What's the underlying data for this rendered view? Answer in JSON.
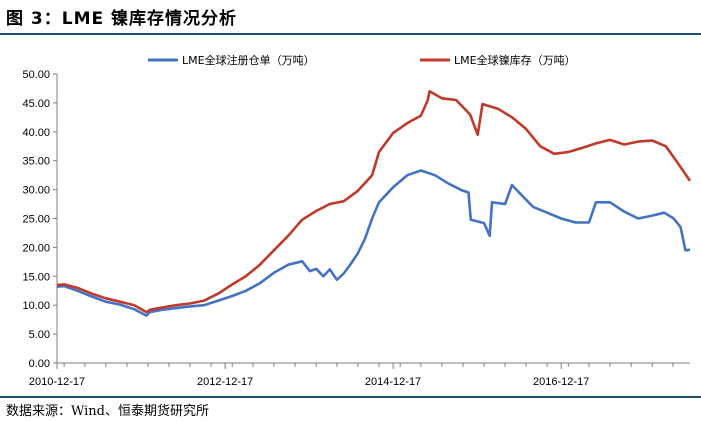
{
  "header": {
    "title": "图 3：LME 镍库存情况分析"
  },
  "footer": {
    "source": "数据来源：Wind、恒泰期货研究所"
  },
  "colors": {
    "series_blue": "#4472c4",
    "series_red": "#c0392b",
    "rule": "#1f4e79"
  },
  "chart_data": {
    "type": "line",
    "title": "",
    "xlabel": "",
    "ylabel": "",
    "ylim": [
      0,
      50
    ],
    "y_ticks": [
      "0.00",
      "5.00",
      "10.00",
      "15.00",
      "20.00",
      "25.00",
      "30.00",
      "35.00",
      "40.00",
      "45.00",
      "50.00"
    ],
    "x_range": [
      "2010-12-17",
      "2018-06-30"
    ],
    "x_ticks": [
      "2010-12-17",
      "2012-12-17",
      "2014-12-17",
      "2016-12-17"
    ],
    "grid": false,
    "legend_position": "top",
    "series": [
      {
        "name": "LME全球注册仓单（万吨）",
        "color": "#4472c4",
        "points": [
          [
            "2010-12-17",
            13.2
          ],
          [
            "2011-01-17",
            13.3
          ],
          [
            "2011-03-17",
            12.5
          ],
          [
            "2011-05-17",
            11.5
          ],
          [
            "2011-07-17",
            10.6
          ],
          [
            "2011-09-17",
            10.1
          ],
          [
            "2011-11-17",
            9.3
          ],
          [
            "2012-01-10",
            8.2
          ],
          [
            "2012-01-25",
            8.8
          ],
          [
            "2012-03-17",
            9.2
          ],
          [
            "2012-05-17",
            9.5
          ],
          [
            "2012-07-17",
            9.8
          ],
          [
            "2012-09-17",
            10.0
          ],
          [
            "2012-11-17",
            10.8
          ],
          [
            "2013-01-17",
            11.6
          ],
          [
            "2013-03-17",
            12.5
          ],
          [
            "2013-05-17",
            13.8
          ],
          [
            "2013-07-17",
            15.6
          ],
          [
            "2013-09-17",
            17.0
          ],
          [
            "2013-11-17",
            17.6
          ],
          [
            "2013-12-20",
            15.9
          ],
          [
            "2014-01-17",
            16.3
          ],
          [
            "2014-02-17",
            15.0
          ],
          [
            "2014-03-17",
            16.2
          ],
          [
            "2014-04-17",
            14.4
          ],
          [
            "2014-05-17",
            15.5
          ],
          [
            "2014-06-17",
            17.2
          ],
          [
            "2014-07-17",
            19.0
          ],
          [
            "2014-08-17",
            21.5
          ],
          [
            "2014-09-17",
            25.0
          ],
          [
            "2014-10-17",
            27.8
          ],
          [
            "2014-12-17",
            30.4
          ],
          [
            "2015-02-17",
            32.5
          ],
          [
            "2015-04-17",
            33.3
          ],
          [
            "2015-06-17",
            32.5
          ],
          [
            "2015-08-17",
            31.0
          ],
          [
            "2015-10-17",
            29.8
          ],
          [
            "2015-11-10",
            29.5
          ],
          [
            "2015-11-20",
            24.8
          ],
          [
            "2016-01-17",
            24.2
          ],
          [
            "2016-02-10",
            22.0
          ],
          [
            "2016-02-20",
            27.8
          ],
          [
            "2016-04-17",
            27.5
          ],
          [
            "2016-05-17",
            30.8
          ],
          [
            "2016-06-17",
            29.5
          ],
          [
            "2016-08-17",
            27.0
          ],
          [
            "2016-10-17",
            26.0
          ],
          [
            "2016-12-17",
            25.0
          ],
          [
            "2017-02-17",
            24.3
          ],
          [
            "2017-04-17",
            24.3
          ],
          [
            "2017-05-17",
            27.8
          ],
          [
            "2017-07-17",
            27.8
          ],
          [
            "2017-09-17",
            26.2
          ],
          [
            "2017-11-17",
            25.0
          ],
          [
            "2018-01-17",
            25.5
          ],
          [
            "2018-03-10",
            26.0
          ],
          [
            "2018-04-20",
            25.0
          ],
          [
            "2018-05-20",
            23.5
          ],
          [
            "2018-06-10",
            19.5
          ],
          [
            "2018-06-30",
            19.6
          ]
        ]
      },
      {
        "name": "LME全球镍库存（万吨）",
        "color": "#c0392b",
        "points": [
          [
            "2010-12-17",
            13.5
          ],
          [
            "2011-01-17",
            13.6
          ],
          [
            "2011-03-17",
            13.0
          ],
          [
            "2011-05-17",
            12.0
          ],
          [
            "2011-07-17",
            11.2
          ],
          [
            "2011-09-17",
            10.6
          ],
          [
            "2011-11-17",
            10.0
          ],
          [
            "2012-01-10",
            8.8
          ],
          [
            "2012-01-25",
            9.2
          ],
          [
            "2012-03-17",
            9.6
          ],
          [
            "2012-05-17",
            10.0
          ],
          [
            "2012-07-17",
            10.3
          ],
          [
            "2012-09-17",
            10.8
          ],
          [
            "2012-11-17",
            12.0
          ],
          [
            "2013-01-17",
            13.6
          ],
          [
            "2013-03-17",
            15.0
          ],
          [
            "2013-05-17",
            17.0
          ],
          [
            "2013-07-17",
            19.5
          ],
          [
            "2013-09-17",
            22.0
          ],
          [
            "2013-11-17",
            24.8
          ],
          [
            "2014-01-17",
            26.3
          ],
          [
            "2014-03-17",
            27.5
          ],
          [
            "2014-05-17",
            28.0
          ],
          [
            "2014-07-17",
            29.8
          ],
          [
            "2014-09-17",
            32.5
          ],
          [
            "2014-10-17",
            36.5
          ],
          [
            "2014-12-17",
            39.8
          ],
          [
            "2015-02-17",
            41.5
          ],
          [
            "2015-04-17",
            42.8
          ],
          [
            "2015-05-17",
            45.5
          ],
          [
            "2015-05-25",
            47.0
          ],
          [
            "2015-07-17",
            45.8
          ],
          [
            "2015-09-17",
            45.5
          ],
          [
            "2015-11-17",
            43.0
          ],
          [
            "2015-12-20",
            39.5
          ],
          [
            "2016-01-10",
            44.8
          ],
          [
            "2016-03-17",
            44.0
          ],
          [
            "2016-05-17",
            42.5
          ],
          [
            "2016-07-17",
            40.5
          ],
          [
            "2016-09-17",
            37.5
          ],
          [
            "2016-11-17",
            36.2
          ],
          [
            "2017-01-17",
            36.5
          ],
          [
            "2017-03-17",
            37.2
          ],
          [
            "2017-05-17",
            38.0
          ],
          [
            "2017-07-17",
            38.6
          ],
          [
            "2017-09-17",
            37.8
          ],
          [
            "2017-11-17",
            38.3
          ],
          [
            "2018-01-17",
            38.5
          ],
          [
            "2018-03-17",
            37.5
          ],
          [
            "2018-05-01",
            35.0
          ],
          [
            "2018-06-30",
            31.5
          ]
        ]
      }
    ]
  }
}
